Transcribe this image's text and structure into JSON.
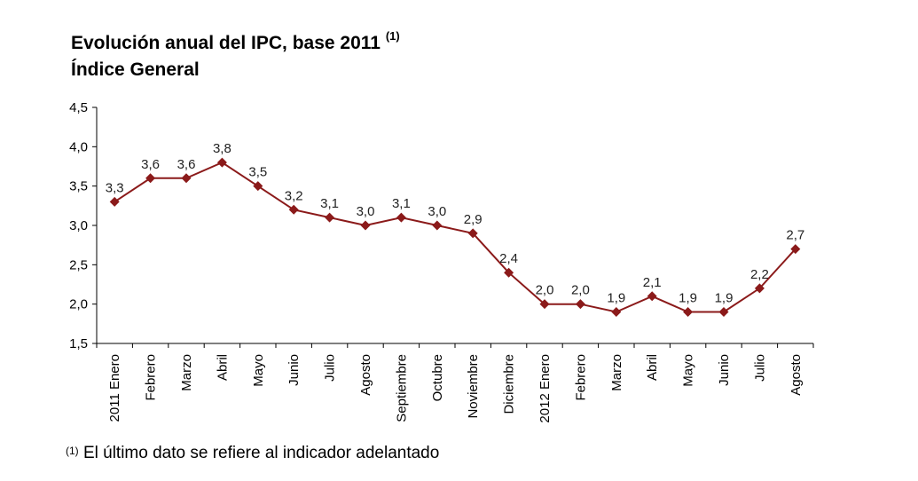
{
  "header": {
    "title_line1": "Evolución anual del IPC, base 2011",
    "title_note_mark": "(1)",
    "title_line2": "Índice General"
  },
  "footnote": {
    "mark": "(1)",
    "text": "El último dato se refiere al indicador adelantado"
  },
  "colors": {
    "series": "#8B1A1A",
    "axis": "#000000"
  },
  "chart_data": {
    "type": "line",
    "title": "Evolución anual del IPC, base 2011 (1) Índice General",
    "xlabel": "",
    "ylabel": "",
    "ylim": [
      1.5,
      4.5
    ],
    "yticks": [
      1.5,
      2.0,
      2.5,
      3.0,
      3.5,
      4.0,
      4.5
    ],
    "ytick_labels": [
      "1,5",
      "2,0",
      "2,5",
      "3,0",
      "3,5",
      "4,0",
      "4,5"
    ],
    "grid": false,
    "legend": "none",
    "marker": "diamond",
    "categories": [
      "2011 Enero",
      "Febrero",
      "Marzo",
      "Abril",
      "Mayo",
      "Junio",
      "Julio",
      "Agosto",
      "Septiembre",
      "Octubre",
      "Noviembre",
      "Diciembre",
      "2012 Enero",
      "Febrero",
      "Marzo",
      "Abril",
      "Mayo",
      "Junio",
      "Julio",
      "Agosto"
    ],
    "values": [
      3.3,
      3.6,
      3.6,
      3.8,
      3.5,
      3.2,
      3.1,
      3.0,
      3.1,
      3.0,
      2.9,
      2.4,
      2.0,
      2.0,
      1.9,
      2.1,
      1.9,
      1.9,
      2.2,
      2.7
    ],
    "data_labels": [
      "3,3",
      "3,6",
      "3,6",
      "3,8",
      "3,5",
      "3,2",
      "3,1",
      "3,0",
      "3,1",
      "3,0",
      "2,9",
      "2,4",
      "2,0",
      "2,0",
      "1,9",
      "2,1",
      "1,9",
      "1,9",
      "2,2",
      "2,7"
    ]
  }
}
